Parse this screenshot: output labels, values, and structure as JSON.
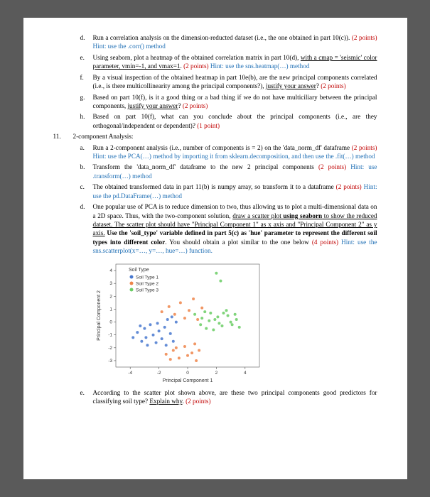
{
  "q10": {
    "d": {
      "label": "d.",
      "text": "Run a correlation analysis on the dimension-reducted dataset (i.e., the one obtained in part 10(c)).",
      "pts": "(2 points)",
      "hint": "Hint: use the .corr() method"
    },
    "e": {
      "label": "e.",
      "text": "Using seaborn, plot a heatmap of the obtained correlation matrix in part 10(d), ",
      "underline": "with a cmap = 'seismic' color parameter, vmin=-1, and vmax=1",
      "after": ".",
      "pts": "(2 points)",
      "hint": "Hint: use the sns.heatmap(…) method"
    },
    "f": {
      "label": "f.",
      "text": "By a visual inspection of the obtained heatmap in part 10e(b), are the new principal components correlated (i.e., is there multicollinearity among the principal components?), ",
      "underline": "justify your answer",
      "after": "?",
      "pts": "(2 points)"
    },
    "g": {
      "label": "g.",
      "text": "Based on part 10(f), is it a good thing or a bad thing if we do not have multiciliary between the principal components, ",
      "underline": "justify your answer",
      "after": "?",
      "pts": "(2 points)"
    },
    "h": {
      "label": "h.",
      "text": "Based on part 10(f), what can you conclude about the principal components (i.e., are they orthogonal/independent or dependent)?",
      "pts": "(1 point)"
    }
  },
  "q11": {
    "label": "11.",
    "title": "2-component Analysis:",
    "a": {
      "label": "a.",
      "text": "Run a 2-component analysis (i.e., number of components is = 2) on the 'data_norm_df' dataframe",
      "pts": "(2 points)",
      "hint": "Hint: use the PCA(…) method by importing it from sklearn.decomposition, and then use the .fit(…) method"
    },
    "b": {
      "label": "b.",
      "text": "Transform the 'data_norm_df' dataframe to the new 2 principal components",
      "pts": "(2 points)",
      "hint": "Hint: use .transform(…) method"
    },
    "c": {
      "label": "c.",
      "text": "The obtained transformed data in part 11(b) is numpy array, so transform it to a dataframe",
      "pts": "(2 points)",
      "hint": "Hint: use the pd.DataFrame(…) method"
    },
    "d": {
      "label": "d.",
      "pre": "One popular use of PCA is to reduce dimension to two, thus allowing us to plot a multi-dimensional data on a 2D space. Thus, with the two-component solution, ",
      "u1": "draw a scatter plot ",
      "b1": "using seaborn",
      "u2": " to show the reduced dataset. The scatter plot should have \"Principal Component 1\" as x axis and \"Principal Component 2\" as y axis.",
      "mid": " ",
      "b2": "Use the 'soil_type' variable defined in part 5(c) as 'hue' parameter to represent the different soil types into different color",
      "post": ". You should obtain a plot similar to the one below",
      "pts": "(4 points)",
      "hint": "Hint: use the sns.scatterplot(x=…, y=…, hue=…) function."
    },
    "e": {
      "label": "e.",
      "text": "According to the scatter plot shown above, are these two principal components good predictors for classifying soil type? ",
      "underline": "Explain why",
      "after": ".",
      "pts": "(2 points)"
    }
  },
  "chart": {
    "type": "scatter",
    "xlabel": "Principal Component 1",
    "ylabel": "Principal Component 2",
    "xlim": [
      -5,
      5
    ],
    "ylim": [
      -3.5,
      4.5
    ],
    "xticks": [
      -4,
      -2,
      0,
      2,
      4
    ],
    "yticks": [
      -3,
      -2,
      -1,
      0,
      1,
      2,
      3,
      4
    ],
    "legend_title": "Soil Type",
    "legend": [
      {
        "label": "Soil Type 1",
        "color": "#4878cf"
      },
      {
        "label": "Soil Type 2",
        "color": "#ee854a"
      },
      {
        "label": "Soil Type 3",
        "color": "#6acc64"
      }
    ],
    "background": "#ffffff",
    "axis_color": "#555555",
    "points": {
      "s1": {
        "color": "#4878cf",
        "xy": [
          [
            -3.8,
            -1.2
          ],
          [
            -3.5,
            -0.8
          ],
          [
            -3.2,
            -1.5
          ],
          [
            -3.0,
            -0.5
          ],
          [
            -2.8,
            -1.8
          ],
          [
            -2.6,
            -0.2
          ],
          [
            -2.4,
            -1.0
          ],
          [
            -2.2,
            -1.6
          ],
          [
            -2.0,
            -0.7
          ],
          [
            -1.8,
            -1.3
          ],
          [
            -1.6,
            -0.4
          ],
          [
            -1.4,
            0.2
          ],
          [
            -1.2,
            -0.9
          ],
          [
            -1.0,
            -1.5
          ],
          [
            -0.8,
            0.0
          ],
          [
            -3.3,
            -0.3
          ],
          [
            -2.9,
            -1.2
          ],
          [
            -2.1,
            -0.1
          ],
          [
            -1.5,
            -1.8
          ],
          [
            -1.1,
            0.4
          ]
        ]
      },
      "s2": {
        "color": "#ee854a",
        "xy": [
          [
            -1.8,
            0.8
          ],
          [
            -1.3,
            1.2
          ],
          [
            -0.9,
            0.6
          ],
          [
            -0.5,
            1.5
          ],
          [
            -0.2,
            0.3
          ],
          [
            0.1,
            0.9
          ],
          [
            0.4,
            1.8
          ],
          [
            0.7,
            0.2
          ],
          [
            1.0,
            1.1
          ],
          [
            -1.5,
            -2.5
          ],
          [
            -1.0,
            -2.2
          ],
          [
            -0.6,
            -2.8
          ],
          [
            -0.2,
            -1.9
          ],
          [
            0.3,
            -2.4
          ],
          [
            0.6,
            -3.0
          ],
          [
            -0.8,
            -2.0
          ],
          [
            0.0,
            -2.6
          ],
          [
            0.5,
            -1.7
          ],
          [
            -1.2,
            -2.9
          ],
          [
            0.8,
            -2.2
          ]
        ]
      },
      "s3": {
        "color": "#6acc64",
        "xy": [
          [
            0.5,
            0.6
          ],
          [
            0.9,
            -0.2
          ],
          [
            1.2,
            0.8
          ],
          [
            1.5,
            0.1
          ],
          [
            1.8,
            -0.6
          ],
          [
            2.1,
            0.4
          ],
          [
            2.4,
            -0.3
          ],
          [
            2.7,
            0.9
          ],
          [
            3.0,
            0.0
          ],
          [
            3.3,
            0.6
          ],
          [
            3.6,
            -0.4
          ],
          [
            1.0,
            0.3
          ],
          [
            1.6,
            0.7
          ],
          [
            2.2,
            -0.1
          ],
          [
            2.8,
            0.5
          ],
          [
            3.4,
            0.2
          ],
          [
            1.3,
            -0.5
          ],
          [
            1.9,
            0.2
          ],
          [
            2.5,
            0.7
          ],
          [
            3.1,
            -0.2
          ],
          [
            2.0,
            3.8
          ],
          [
            2.3,
            3.2
          ]
        ]
      }
    }
  }
}
